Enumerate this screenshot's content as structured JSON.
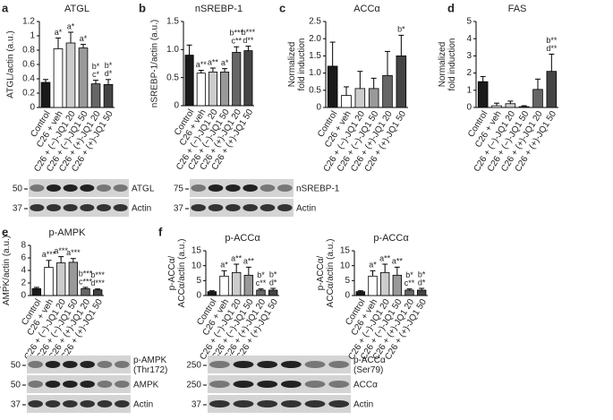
{
  "chart_data": [
    {
      "type": "bar",
      "panel": "a",
      "title": "ATGL",
      "ylabel": [
        "ATGL/actin (a.u.)"
      ],
      "categories": [
        "Control",
        "C26 + veh",
        "C26 + (−)-JQ1 20",
        "C26 + (−)-JQ1 50",
        "C26 + (+)-JQ1 20",
        "C26 + (+)-JQ1 50"
      ],
      "values": [
        0.35,
        0.82,
        0.9,
        0.83,
        0.33,
        0.32
      ],
      "errors": [
        0.04,
        0.15,
        0.15,
        0.05,
        0.05,
        0.07
      ],
      "colors": [
        "#1a1a1a",
        "#ffffff",
        "#cccccc",
        "#999999",
        "#666666",
        "#444444"
      ],
      "annotations": [
        null,
        [
          "a*"
        ],
        [
          "a*"
        ],
        [
          "a*"
        ],
        [
          "b*",
          "c*"
        ],
        [
          "b*",
          "d*"
        ]
      ],
      "ylim": [
        0,
        1.2
      ],
      "yticks": [
        0,
        0.2,
        0.4,
        0.6,
        0.8,
        1,
        1.2
      ],
      "blot": {
        "markers": [
          50,
          37
        ],
        "bands": [
          [
            "ATGL"
          ],
          [
            "Actin"
          ]
        ]
      }
    },
    {
      "type": "bar",
      "panel": "b",
      "title": "nSREBP-1",
      "ylabel": [
        "nSREBP-1/actin (a.u.)"
      ],
      "categories": [
        "Control",
        "C26 + veh",
        "C26 + (−)-JQ1 20",
        "C26 + (−)-JQ1 50",
        "C26 + (+)-JQ1 20",
        "C26 + (+)-JQ1 50"
      ],
      "values": [
        0.9,
        0.58,
        0.6,
        0.6,
        0.95,
        0.98
      ],
      "errors": [
        0.18,
        0.05,
        0.07,
        0.06,
        0.1,
        0.08
      ],
      "colors": [
        "#1a1a1a",
        "#ffffff",
        "#cccccc",
        "#999999",
        "#666666",
        "#444444"
      ],
      "annotations": [
        null,
        [
          "a**"
        ],
        [
          "a**"
        ],
        [
          "a*"
        ],
        [
          "b***",
          "c**"
        ],
        [
          "b***",
          "d**"
        ]
      ],
      "ylim": [
        0,
        1.5
      ],
      "yticks": [
        0,
        0.5,
        {
          "value": 1,
          "label": "1.0"
        },
        1.5
      ],
      "blot": {
        "markers": [
          75,
          37
        ],
        "bands": [
          [
            "nSREBP-1"
          ],
          [
            "Actin"
          ]
        ]
      }
    },
    {
      "type": "bar",
      "panel": "c",
      "title": "ACCα",
      "ylabel": [
        "Normalized",
        "fold induction"
      ],
      "categories": [
        "Control",
        "C26 + veh",
        "C26 + (−)-JQ1 20",
        "C26 + (−)-JQ1 50",
        "C26 + (+)-JQ1 20",
        "C26 + (+)-JQ1 50"
      ],
      "values": [
        1.2,
        0.35,
        0.55,
        0.55,
        0.93,
        1.5
      ],
      "errors": [
        0.7,
        0.25,
        0.5,
        0.3,
        0.7,
        0.6
      ],
      "colors": [
        "#1a1a1a",
        "#ffffff",
        "#cccccc",
        "#999999",
        "#666666",
        "#444444"
      ],
      "annotations": [
        null,
        null,
        null,
        null,
        null,
        [
          "b*"
        ]
      ],
      "ylim": [
        0,
        2.5
      ],
      "yticks": [
        0,
        0.5,
        {
          "value": 1,
          "label": "1.0"
        },
        1.5,
        {
          "value": 2,
          "label": "2.0"
        },
        2.5
      ]
    },
    {
      "type": "bar",
      "panel": "d",
      "title": "FAS",
      "ylabel": [
        "Normalized",
        "fold induction"
      ],
      "categories": [
        "Control",
        "C26 + veh",
        "C26 + (−)-JQ1 20",
        "C26 + (−)-JQ1 50",
        "C26 + (+)-JQ1 20",
        "C26 + (+)-JQ1 50"
      ],
      "values": [
        1.5,
        0.1,
        0.22,
        0.05,
        1.05,
        2.1
      ],
      "errors": [
        0.3,
        0.15,
        0.15,
        0.05,
        0.6,
        1.0
      ],
      "colors": [
        "#1a1a1a",
        "#ffffff",
        "#cccccc",
        "#999999",
        "#666666",
        "#444444"
      ],
      "annotations": [
        null,
        null,
        null,
        null,
        null,
        [
          "b**",
          "d**"
        ]
      ],
      "ylim": [
        0,
        5
      ],
      "yticks": [
        0,
        1,
        2,
        3,
        4,
        5
      ]
    },
    {
      "type": "bar",
      "panel": "e",
      "title": "p-AMPK",
      "ylabel": [
        "p-AMPK/",
        "AMPK/actin (a.u.)"
      ],
      "categories": [
        "Control",
        "C26 + veh",
        "C26 + (−)-JQ1 20",
        "C26 + (−)-JQ1 50",
        "C26 + (+)-JQ1 20",
        "C26 + (+)-JQ1 50"
      ],
      "values": [
        1.1,
        4.5,
        5.2,
        5.3,
        1.1,
        0.9
      ],
      "errors": [
        0.2,
        1.1,
        1.0,
        0.6,
        0.2,
        0.15
      ],
      "colors": [
        "#1a1a1a",
        "#ffffff",
        "#cccccc",
        "#999999",
        "#666666",
        "#444444"
      ],
      "annotations": [
        null,
        [
          "a***"
        ],
        [
          "a***"
        ],
        [
          "a***"
        ],
        [
          "b***",
          "c***"
        ],
        [
          "b***",
          "d***"
        ]
      ],
      "ylim": [
        0,
        8
      ],
      "yticks": [
        0,
        2,
        4,
        6,
        8
      ],
      "blot": {
        "markers": [
          50,
          50,
          37
        ],
        "bands": [
          [
            "p-AMPK",
            "(Thr172)"
          ],
          [
            "AMPK"
          ],
          [
            "Actin"
          ]
        ]
      }
    },
    {
      "type": "bar",
      "panel": "f",
      "title": "p-ACCα",
      "ylabel": [
        "p-ACCα/",
        "ACCα/actin (a.u.)"
      ],
      "categories": [
        "Control",
        "C26 + veh",
        "C26 + (−)-JQ1 20",
        "C26 + (−)-JQ1 50",
        "C26 + (+)-JQ1 20",
        "C26 + (+)-JQ1 50"
      ],
      "values": [
        1.3,
        6.5,
        7.7,
        6.8,
        1.8,
        1.8
      ],
      "errors": [
        0.3,
        1.8,
        2.8,
        2.7,
        0.4,
        0.6
      ],
      "colors": [
        "#1a1a1a",
        "#ffffff",
        "#cccccc",
        "#999999",
        "#666666",
        "#444444"
      ],
      "annotations": [
        null,
        [
          "a*"
        ],
        [
          "a**"
        ],
        [
          "a**"
        ],
        [
          "b*",
          "c**"
        ],
        [
          "b*",
          "d*"
        ]
      ],
      "ylim": [
        0,
        15
      ],
      "yticks": [
        0,
        5,
        10,
        15
      ],
      "blot": {
        "markers": [
          250,
          250,
          37
        ],
        "bands": [
          [
            "p-ACCα",
            "(Ser79)"
          ],
          [
            "ACCα"
          ],
          [
            "Actin"
          ]
        ]
      }
    },
    {
      "type": "bar",
      "title": "p-ACCα",
      "ylabel": [
        "p-ACCα/",
        "ACCα/actin (a.u.)"
      ],
      "categories": [
        "Control",
        "C26 + veh",
        "C26 + (−)-JQ1 20",
        "C26 + (−)-JQ1 50",
        "C26 + (+)-JQ1 20",
        "C26 + (+)-JQ1 50"
      ],
      "values": [
        1.3,
        6.5,
        7.7,
        6.8,
        1.8,
        1.8
      ],
      "errors": [
        0.3,
        1.8,
        2.8,
        2.7,
        0.4,
        0.6
      ],
      "colors": [
        "#1a1a1a",
        "#ffffff",
        "#cccccc",
        "#999999",
        "#666666",
        "#444444"
      ],
      "annotations": [
        null,
        [
          "a*"
        ],
        [
          "a**"
        ],
        [
          "a**"
        ],
        [
          "b*",
          "c**"
        ],
        [
          "b*",
          "d*"
        ]
      ],
      "ylim": [
        0,
        15
      ],
      "yticks": [
        0,
        5,
        10,
        15
      ]
    }
  ]
}
